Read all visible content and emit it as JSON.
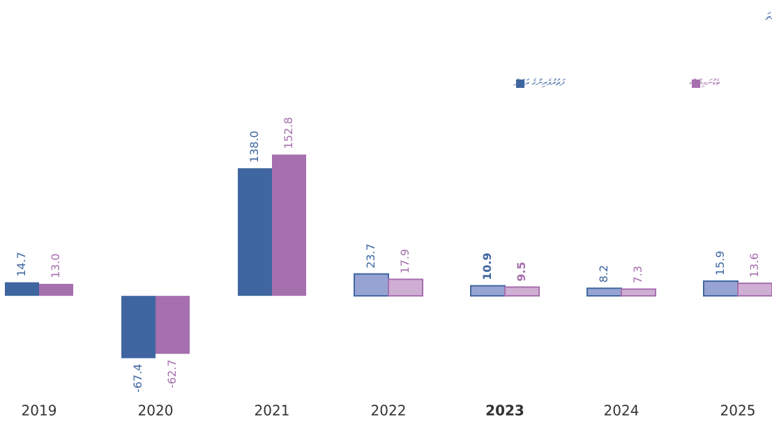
{
  "chart_data": {
    "type": "bar",
    "title": "އިންސައްތަ",
    "categories": [
      "2019",
      "2020",
      "2021",
      "2022",
      "2023",
      "2024",
      "2025"
    ],
    "series": [
      {
        "name": "ފަތުރުވެރިންގެ އަދަދު",
        "color": "#3f66a0",
        "projected_color": "#97a3d3",
        "values": [
          14.7,
          -67.4,
          138.0,
          23.7,
          10.9,
          8.2,
          15.9
        ],
        "value_labels": [
          "14.7",
          "-67.4",
          "138.0",
          "23.7",
          "10.9",
          "8.2",
          "15.9"
        ]
      },
      {
        "name": "ބެޑްނައިޓްސް",
        "color": "#a66fae",
        "projected_color": "#cfaed3",
        "values": [
          13.0,
          -62.7,
          152.8,
          17.9,
          9.5,
          7.3,
          13.6
        ],
        "value_labels": [
          "13.0",
          "-62.7",
          "152.8",
          "17.9",
          "9.5",
          "7.3",
          "13.6"
        ]
      }
    ],
    "projected_from": 3,
    "highlight": 4,
    "ylim": [
      -110,
      200
    ]
  }
}
